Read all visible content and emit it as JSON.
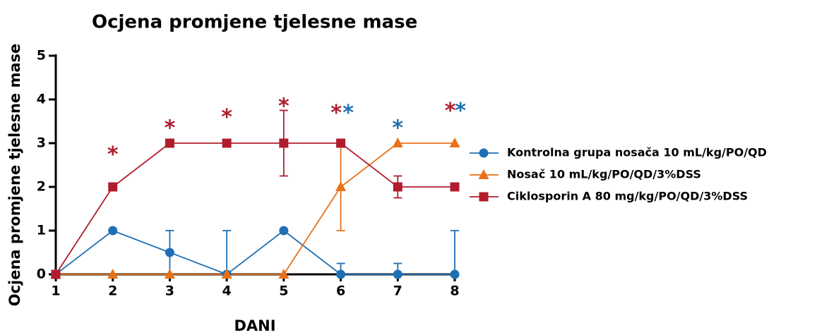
{
  "chart_data": {
    "type": "line",
    "title": "Ocjena promjene tjelesne mase",
    "x_label": "DANI",
    "y_label": "Ocjena promjene tjelesne mase",
    "x": [
      1,
      2,
      3,
      4,
      5,
      6,
      7,
      8
    ],
    "xlim": [
      1,
      8
    ],
    "xticks": [
      1,
      2,
      3,
      4,
      5,
      6,
      7,
      8
    ],
    "ylim": [
      0,
      5
    ],
    "yticks": [
      0,
      1,
      2,
      3,
      4,
      5
    ],
    "series": [
      {
        "name": "Kontrolna grupa nosača 10 mL/kg/PO/QD",
        "color": "#1f6fb4",
        "marker": "circle",
        "values": [
          0,
          1,
          0.5,
          0,
          1,
          0,
          0,
          0
        ],
        "errors": [
          0,
          0,
          0.5,
          1,
          0,
          0.25,
          0.25,
          1
        ]
      },
      {
        "name": "Nosač 10 mL/kg/PO/QD/3%DSS",
        "color": "#e8711a",
        "marker": "triangle",
        "values": [
          0,
          0,
          0,
          0,
          0,
          2,
          3,
          3
        ],
        "errors": [
          0,
          0,
          0,
          0,
          0,
          1,
          0,
          0
        ]
      },
      {
        "name": "Ciklosporin A 80 mg/kg/PO/QD/3%DSS",
        "color": "#b01c2e",
        "marker": "square",
        "values": [
          0,
          2,
          3,
          3,
          3,
          3,
          2,
          2
        ],
        "errors": [
          0,
          0,
          0,
          0,
          0.75,
          0,
          0.25,
          0
        ]
      }
    ],
    "annotations": [
      {
        "text": "*",
        "x": 2,
        "y": 2.85,
        "color": "#b01c2e"
      },
      {
        "text": "*",
        "x": 3,
        "y": 3.45,
        "color": "#b01c2e"
      },
      {
        "text": "*",
        "x": 4,
        "y": 3.7,
        "color": "#b01c2e"
      },
      {
        "text": "*",
        "x": 5,
        "y": 3.95,
        "color": "#b01c2e"
      },
      {
        "text": "*",
        "x": 5.92,
        "y": 3.8,
        "color": "#b01c2e"
      },
      {
        "text": "*",
        "x": 6.13,
        "y": 3.8,
        "color": "#1f6fb4"
      },
      {
        "text": "*",
        "x": 7,
        "y": 3.45,
        "color": "#1f6fb4"
      },
      {
        "text": "*",
        "x": 7.92,
        "y": 3.85,
        "color": "#b01c2e"
      },
      {
        "text": "*",
        "x": 8.1,
        "y": 3.85,
        "color": "#1f6fb4"
      }
    ]
  }
}
